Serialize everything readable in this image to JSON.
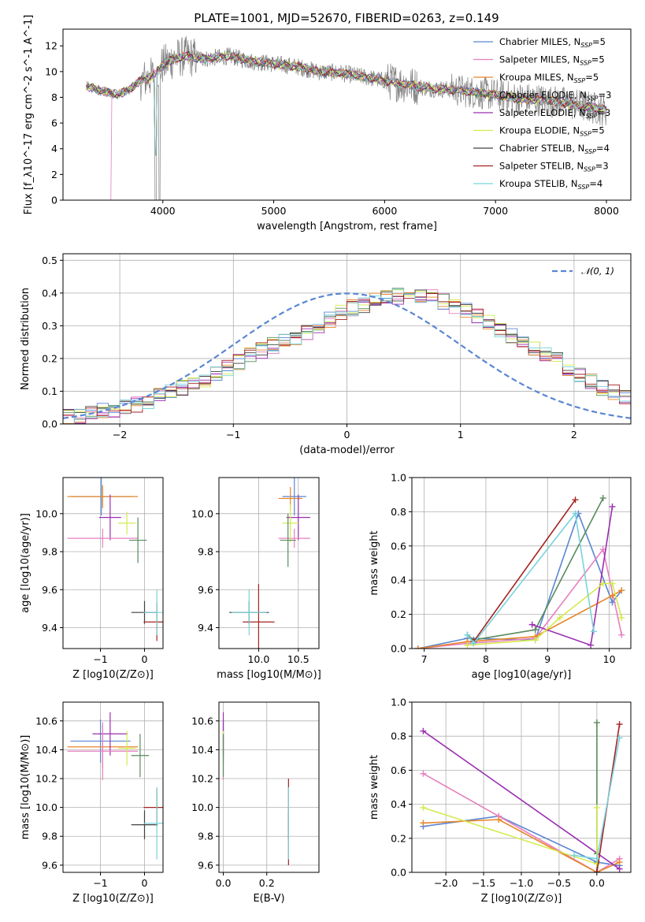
{
  "figure": {
    "title": "PLATE=1001, MJD=52670, FIBERID=0263, z=0.149"
  },
  "chart_data": [
    {
      "id": "spectrum",
      "type": "line",
      "xlabel": "wavelength [Angstrom, rest frame]",
      "ylabel": "Flux [f_λ10^-17 erg cm^-2 s^-1 A^-1]",
      "xlim": [
        3100,
        8220
      ],
      "ylim": [
        0,
        13.3
      ],
      "xticks": [
        4000,
        5000,
        6000,
        7000,
        8000
      ],
      "yticks": [
        0,
        2,
        4,
        6,
        8,
        10,
        12
      ],
      "grid": false,
      "legend_position": "right",
      "data_color": "#808080",
      "data_anchors": {
        "x": [
          3300,
          3400,
          3500,
          3600,
          3700,
          3800,
          3900,
          4000,
          4100,
          4200,
          4400,
          4600,
          4800,
          5000,
          5200,
          5400,
          5600,
          5800,
          6000,
          6200,
          6400,
          6600,
          6800,
          7000,
          7200,
          7400,
          7600,
          7800,
          8000
        ],
        "y": [
          8.9,
          8.6,
          8.4,
          8.2,
          8.6,
          9.3,
          9.6,
          10.5,
          11.0,
          11.2,
          11.0,
          11.2,
          10.8,
          10.6,
          10.4,
          10.0,
          9.9,
          9.6,
          9.3,
          9.0,
          8.7,
          8.6,
          8.4,
          8.2,
          7.9,
          7.8,
          7.6,
          7.3,
          7.0
        ]
      },
      "series": [
        {
          "name": "Chabrier MILES, N_SSP=5",
          "color": "#5a86d2"
        },
        {
          "name": "Salpeter MILES, N_SSP=5",
          "color": "#e77fbf"
        },
        {
          "name": "Kroupa MILES, N_SSP=5",
          "color": "#e7862a"
        },
        {
          "name": "Chabrier ELODIE, N_SSP=3",
          "color": "#5a8a5e"
        },
        {
          "name": "Salpeter ELODIE, N_SSP=3",
          "color": "#9b2fb1"
        },
        {
          "name": "Kroupa ELODIE, N_SSP=5",
          "color": "#d4ea4e"
        },
        {
          "name": "Chabrier STELIB, N_SSP=4",
          "color": "#404040"
        },
        {
          "name": "Salpeter STELIB, N_SSP=3",
          "color": "#a52222"
        },
        {
          "name": "Kroupa STELIB, N_SSP=4",
          "color": "#79d3db"
        }
      ]
    },
    {
      "id": "residuals",
      "type": "line",
      "xlabel": "(data-model)/error",
      "ylabel": "Normed distribution",
      "xlim": [
        -2.5,
        2.5
      ],
      "ylim": [
        0,
        0.52
      ],
      "xticks": [
        -2,
        -1,
        0,
        1,
        2
      ],
      "yticks": [
        0.0,
        0.1,
        0.2,
        0.3,
        0.4,
        0.5
      ],
      "grid": true,
      "legend_position": "top-right",
      "legend": "𝒩(0, 1)",
      "bin_width": 0.1,
      "bin_start": -2.5,
      "histogram_base": [
        0.02,
        0.022,
        0.03,
        0.04,
        0.045,
        0.05,
        0.06,
        0.07,
        0.085,
        0.1,
        0.11,
        0.12,
        0.135,
        0.15,
        0.17,
        0.19,
        0.21,
        0.225,
        0.24,
        0.25,
        0.265,
        0.28,
        0.3,
        0.32,
        0.34,
        0.355,
        0.365,
        0.375,
        0.385,
        0.39,
        0.4,
        0.395,
        0.385,
        0.375,
        0.36,
        0.345,
        0.33,
        0.31,
        0.29,
        0.27,
        0.25,
        0.235,
        0.215,
        0.195,
        0.17,
        0.15,
        0.13,
        0.11,
        0.095,
        0.08,
        0.065,
        0.055,
        0.045,
        0.04,
        0.035,
        0.032,
        0.028,
        0.025,
        0.022,
        0.02
      ]
    },
    {
      "id": "age-vs-Z",
      "type": "scatter",
      "xlabel": "Z [log10(Z/Z⊙)]",
      "ylabel": "age  [log10(age/yr)]",
      "xlim": [
        -1.85,
        0.42
      ],
      "ylim": [
        9.29,
        10.19
      ],
      "xticks": [
        -1,
        0
      ],
      "yticks": [
        9.4,
        9.6,
        9.8,
        10.0
      ],
      "grid": true,
      "points": [
        {
          "color": "#5a86d2",
          "x": -0.98,
          "y": 10.09,
          "xerr": 0.68,
          "yerr": 0.1
        },
        {
          "color": "#e7862a",
          "x": -0.95,
          "y": 10.09,
          "xerr": 0.8,
          "yerr": 0.06
        },
        {
          "color": "#9b2fb1",
          "x": -0.78,
          "y": 9.98,
          "xerr": 0.25,
          "yerr": 0.12
        },
        {
          "color": "#e77fbf",
          "x": -0.95,
          "y": 9.87,
          "xerr": 0.8,
          "yerr": 0.05
        },
        {
          "color": "#d4ea4e",
          "x": -0.4,
          "y": 9.95,
          "xerr": 0.2,
          "yerr": 0.06
        },
        {
          "color": "#5a8a5e",
          "x": -0.15,
          "y": 9.86,
          "xerr": 0.2,
          "yerr": 0.12
        },
        {
          "color": "#404040",
          "x": 0.0,
          "y": 9.48,
          "xerr": 0.3,
          "yerr": 0.06
        },
        {
          "color": "#a52222",
          "x": 0.28,
          "y": 9.43,
          "xerr": 0.3,
          "yerr": 0.1
        },
        {
          "color": "#79d3db",
          "x": 0.28,
          "y": 9.48,
          "xerr": 0.3,
          "yerr": 0.12
        }
      ]
    },
    {
      "id": "age-vs-mass",
      "type": "scatter",
      "xlabel": "mass [log10(M/M⊙)]",
      "ylabel": "",
      "xlim": [
        9.5,
        10.76
      ],
      "ylim": [
        9.29,
        10.19
      ],
      "xticks": [
        10.0,
        10.5
      ],
      "yticks": [
        9.4,
        9.6,
        9.8,
        10.0
      ],
      "grid": true,
      "points": [
        {
          "color": "#5a86d2",
          "x": 10.45,
          "y": 10.09,
          "xerr": 0.15,
          "yerr": 0.1
        },
        {
          "color": "#e7862a",
          "x": 10.4,
          "y": 10.08,
          "xerr": 0.15,
          "yerr": 0.06
        },
        {
          "color": "#9b2fb1",
          "x": 10.5,
          "y": 9.98,
          "xerr": 0.15,
          "yerr": 0.12
        },
        {
          "color": "#e77fbf",
          "x": 10.45,
          "y": 9.87,
          "xerr": 0.2,
          "yerr": 0.05
        },
        {
          "color": "#d4ea4e",
          "x": 10.4,
          "y": 9.95,
          "xerr": 0.1,
          "yerr": 0.1
        },
        {
          "color": "#5a8a5e",
          "x": 10.37,
          "y": 9.86,
          "xerr": 0.1,
          "yerr": 0.14
        },
        {
          "color": "#404040",
          "x": 9.88,
          "y": 9.48,
          "xerr": 0.25,
          "yerr": 0.06
        },
        {
          "color": "#a52222",
          "x": 10.0,
          "y": 9.43,
          "xerr": 0.2,
          "yerr": 0.2
        },
        {
          "color": "#79d3db",
          "x": 9.88,
          "y": 9.48,
          "xerr": 0.22,
          "yerr": 0.12
        }
      ]
    },
    {
      "id": "mass-weight-vs-age",
      "type": "line",
      "xlabel": "age  [log10(age/yr)]",
      "ylabel": "mass weight",
      "xlim": [
        6.8,
        10.35
      ],
      "ylim": [
        0,
        1.0
      ],
      "xticks": [
        7,
        8,
        9,
        10
      ],
      "yticks": [
        0.0,
        0.2,
        0.4,
        0.6,
        0.8,
        1.0
      ],
      "grid": true,
      "series": [
        {
          "color": "#5a86d2",
          "x": [
            6.9,
            7.7,
            8.8,
            9.5,
            10.05,
            10.2
          ],
          "y": [
            0.0,
            0.06,
            0.05,
            0.79,
            0.27,
            0.34
          ]
        },
        {
          "color": "#e77fbf",
          "x": [
            6.9,
            7.7,
            8.8,
            9.9,
            10.2
          ],
          "y": [
            0.0,
            0.03,
            0.06,
            0.58,
            0.08
          ]
        },
        {
          "color": "#e7862a",
          "x": [
            6.9,
            7.7,
            8.8,
            10.05,
            10.2
          ],
          "y": [
            0.0,
            0.04,
            0.07,
            0.31,
            0.34
          ]
        },
        {
          "color": "#5a8a5e",
          "x": [
            7.7,
            7.8,
            8.8,
            9.9
          ],
          "y": [
            0.08,
            0.05,
            0.11,
            0.88
          ]
        },
        {
          "color": "#9b2fb1",
          "x": [
            8.75,
            9.7,
            10.05
          ],
          "y": [
            0.14,
            0.02,
            0.83
          ]
        },
        {
          "color": "#d4ea4e",
          "x": [
            7.7,
            8.8,
            9.2,
            9.9,
            10.05,
            10.2
          ],
          "y": [
            0.02,
            0.05,
            0.18,
            0.38,
            0.38,
            0.18
          ]
        },
        {
          "color": "#a52222",
          "x": [
            7.8,
            9.45
          ],
          "y": [
            0.04,
            0.87
          ]
        },
        {
          "color": "#79d3db",
          "x": [
            7.7,
            7.8,
            9.45,
            9.75
          ],
          "y": [
            0.08,
            0.03,
            0.79,
            0.1
          ]
        }
      ]
    },
    {
      "id": "mass-vs-Z",
      "type": "scatter",
      "xlabel": "Z [log10(Z/Z⊙)]",
      "ylabel": "mass [log10(M/M⊙)]",
      "xlim": [
        -1.85,
        0.42
      ],
      "ylim": [
        9.55,
        10.73
      ],
      "xticks": [
        -1,
        0
      ],
      "yticks": [
        9.6,
        9.8,
        10.0,
        10.2,
        10.4,
        10.6
      ],
      "grid": true,
      "points": [
        {
          "color": "#5a86d2",
          "x": -1.0,
          "y": 10.46,
          "xerr": 0.68,
          "yerr": 0.15
        },
        {
          "color": "#e7862a",
          "x": -0.95,
          "y": 10.42,
          "xerr": 0.8,
          "yerr": 0.15
        },
        {
          "color": "#9b2fb1",
          "x": -0.78,
          "y": 10.51,
          "xerr": 0.4,
          "yerr": 0.15
        },
        {
          "color": "#e77fbf",
          "x": -0.95,
          "y": 10.39,
          "xerr": 0.8,
          "yerr": 0.2
        },
        {
          "color": "#d4ea4e",
          "x": -0.4,
          "y": 10.41,
          "xerr": 0.2,
          "yerr": 0.12
        },
        {
          "color": "#5a8a5e",
          "x": -0.1,
          "y": 10.36,
          "xerr": 0.2,
          "yerr": 0.15
        },
        {
          "color": "#404040",
          "x": 0.0,
          "y": 9.88,
          "xerr": 0.3,
          "yerr": 0.1
        },
        {
          "color": "#a52222",
          "x": 0.28,
          "y": 10.0,
          "xerr": 0.3,
          "yerr": 0.13
        },
        {
          "color": "#79d3db",
          "x": 0.28,
          "y": 9.89,
          "xerr": 0.3,
          "yerr": 0.25
        }
      ]
    },
    {
      "id": "mass-vs-EBV",
      "type": "scatter",
      "xlabel": "E(B-V)",
      "ylabel": "",
      "xlim": [
        -0.02,
        0.44
      ],
      "ylim": [
        9.55,
        10.73
      ],
      "xticks": [
        0.0,
        0.2
      ],
      "yticks": [
        9.6,
        9.8,
        10.0,
        10.2,
        10.4,
        10.6
      ],
      "grid": true,
      "points": [
        {
          "color": "#5a86d2",
          "x": 0.0,
          "y": 10.46,
          "xerr": 0.0,
          "yerr": 0.15
        },
        {
          "color": "#e77fbf",
          "x": 0.0,
          "y": 10.39,
          "xerr": 0.0,
          "yerr": 0.2
        },
        {
          "color": "#9b2fb1",
          "x": 0.0,
          "y": 10.51,
          "xerr": 0.0,
          "yerr": 0.15
        },
        {
          "color": "#d4ea4e",
          "x": 0.0,
          "y": 10.41,
          "xerr": 0.0,
          "yerr": 0.12
        },
        {
          "color": "#5a8a5e",
          "x": 0.0,
          "y": 10.36,
          "xerr": 0.0,
          "yerr": 0.15
        },
        {
          "color": "#404040",
          "x": 0.3,
          "y": 9.88,
          "xerr": 0.0,
          "yerr": 0.1
        },
        {
          "color": "#a52222",
          "x": 0.3,
          "y": 9.9,
          "xerr": 0.0,
          "yerr": 0.3
        },
        {
          "color": "#79d3db",
          "x": 0.3,
          "y": 9.89,
          "xerr": 0.0,
          "yerr": 0.25
        }
      ]
    },
    {
      "id": "mass-weight-vs-Z",
      "type": "line",
      "xlabel": "Z [log10(Z/Z⊙)]",
      "ylabel": "mass weight",
      "xlim": [
        -2.45,
        0.45
      ],
      "ylim": [
        0,
        1.0
      ],
      "xticks": [
        -2.0,
        -1.5,
        -1.0,
        -0.5,
        0.0
      ],
      "yticks": [
        0.0,
        0.2,
        0.4,
        0.6,
        0.8,
        1.0
      ],
      "grid": true,
      "series": [
        {
          "color": "#5a86d2",
          "x": [
            -2.3,
            -1.3,
            -0.0,
            0.3
          ],
          "y": [
            0.27,
            0.33,
            0.06,
            0.04
          ]
        },
        {
          "color": "#e77fbf",
          "x": [
            -2.3,
            -1.3,
            0.0,
            0.3
          ],
          "y": [
            0.58,
            0.33,
            0.0,
            0.08
          ]
        },
        {
          "color": "#e7862a",
          "x": [
            -2.3,
            -1.3,
            0.0,
            0.3
          ],
          "y": [
            0.29,
            0.31,
            0.0,
            0.06
          ]
        },
        {
          "color": "#5a8a5e",
          "x": [
            0.0,
            0.0,
            0.0
          ],
          "y": [
            0.0,
            0.11,
            0.88
          ]
        },
        {
          "color": "#9b2fb1",
          "x": [
            -2.3,
            0.3
          ],
          "y": [
            0.83,
            0.02
          ]
        },
        {
          "color": "#d4ea4e",
          "x": [
            -2.3,
            -0.0,
            0.0
          ],
          "y": [
            0.38,
            0.05,
            0.38
          ]
        },
        {
          "color": "#a52222",
          "x": [
            0.0,
            0.3
          ],
          "y": [
            0.0,
            0.87
          ]
        },
        {
          "color": "#79d3db",
          "x": [
            -0.3,
            0.0,
            0.3
          ],
          "y": [
            0.1,
            0.08,
            0.79
          ]
        }
      ]
    }
  ]
}
